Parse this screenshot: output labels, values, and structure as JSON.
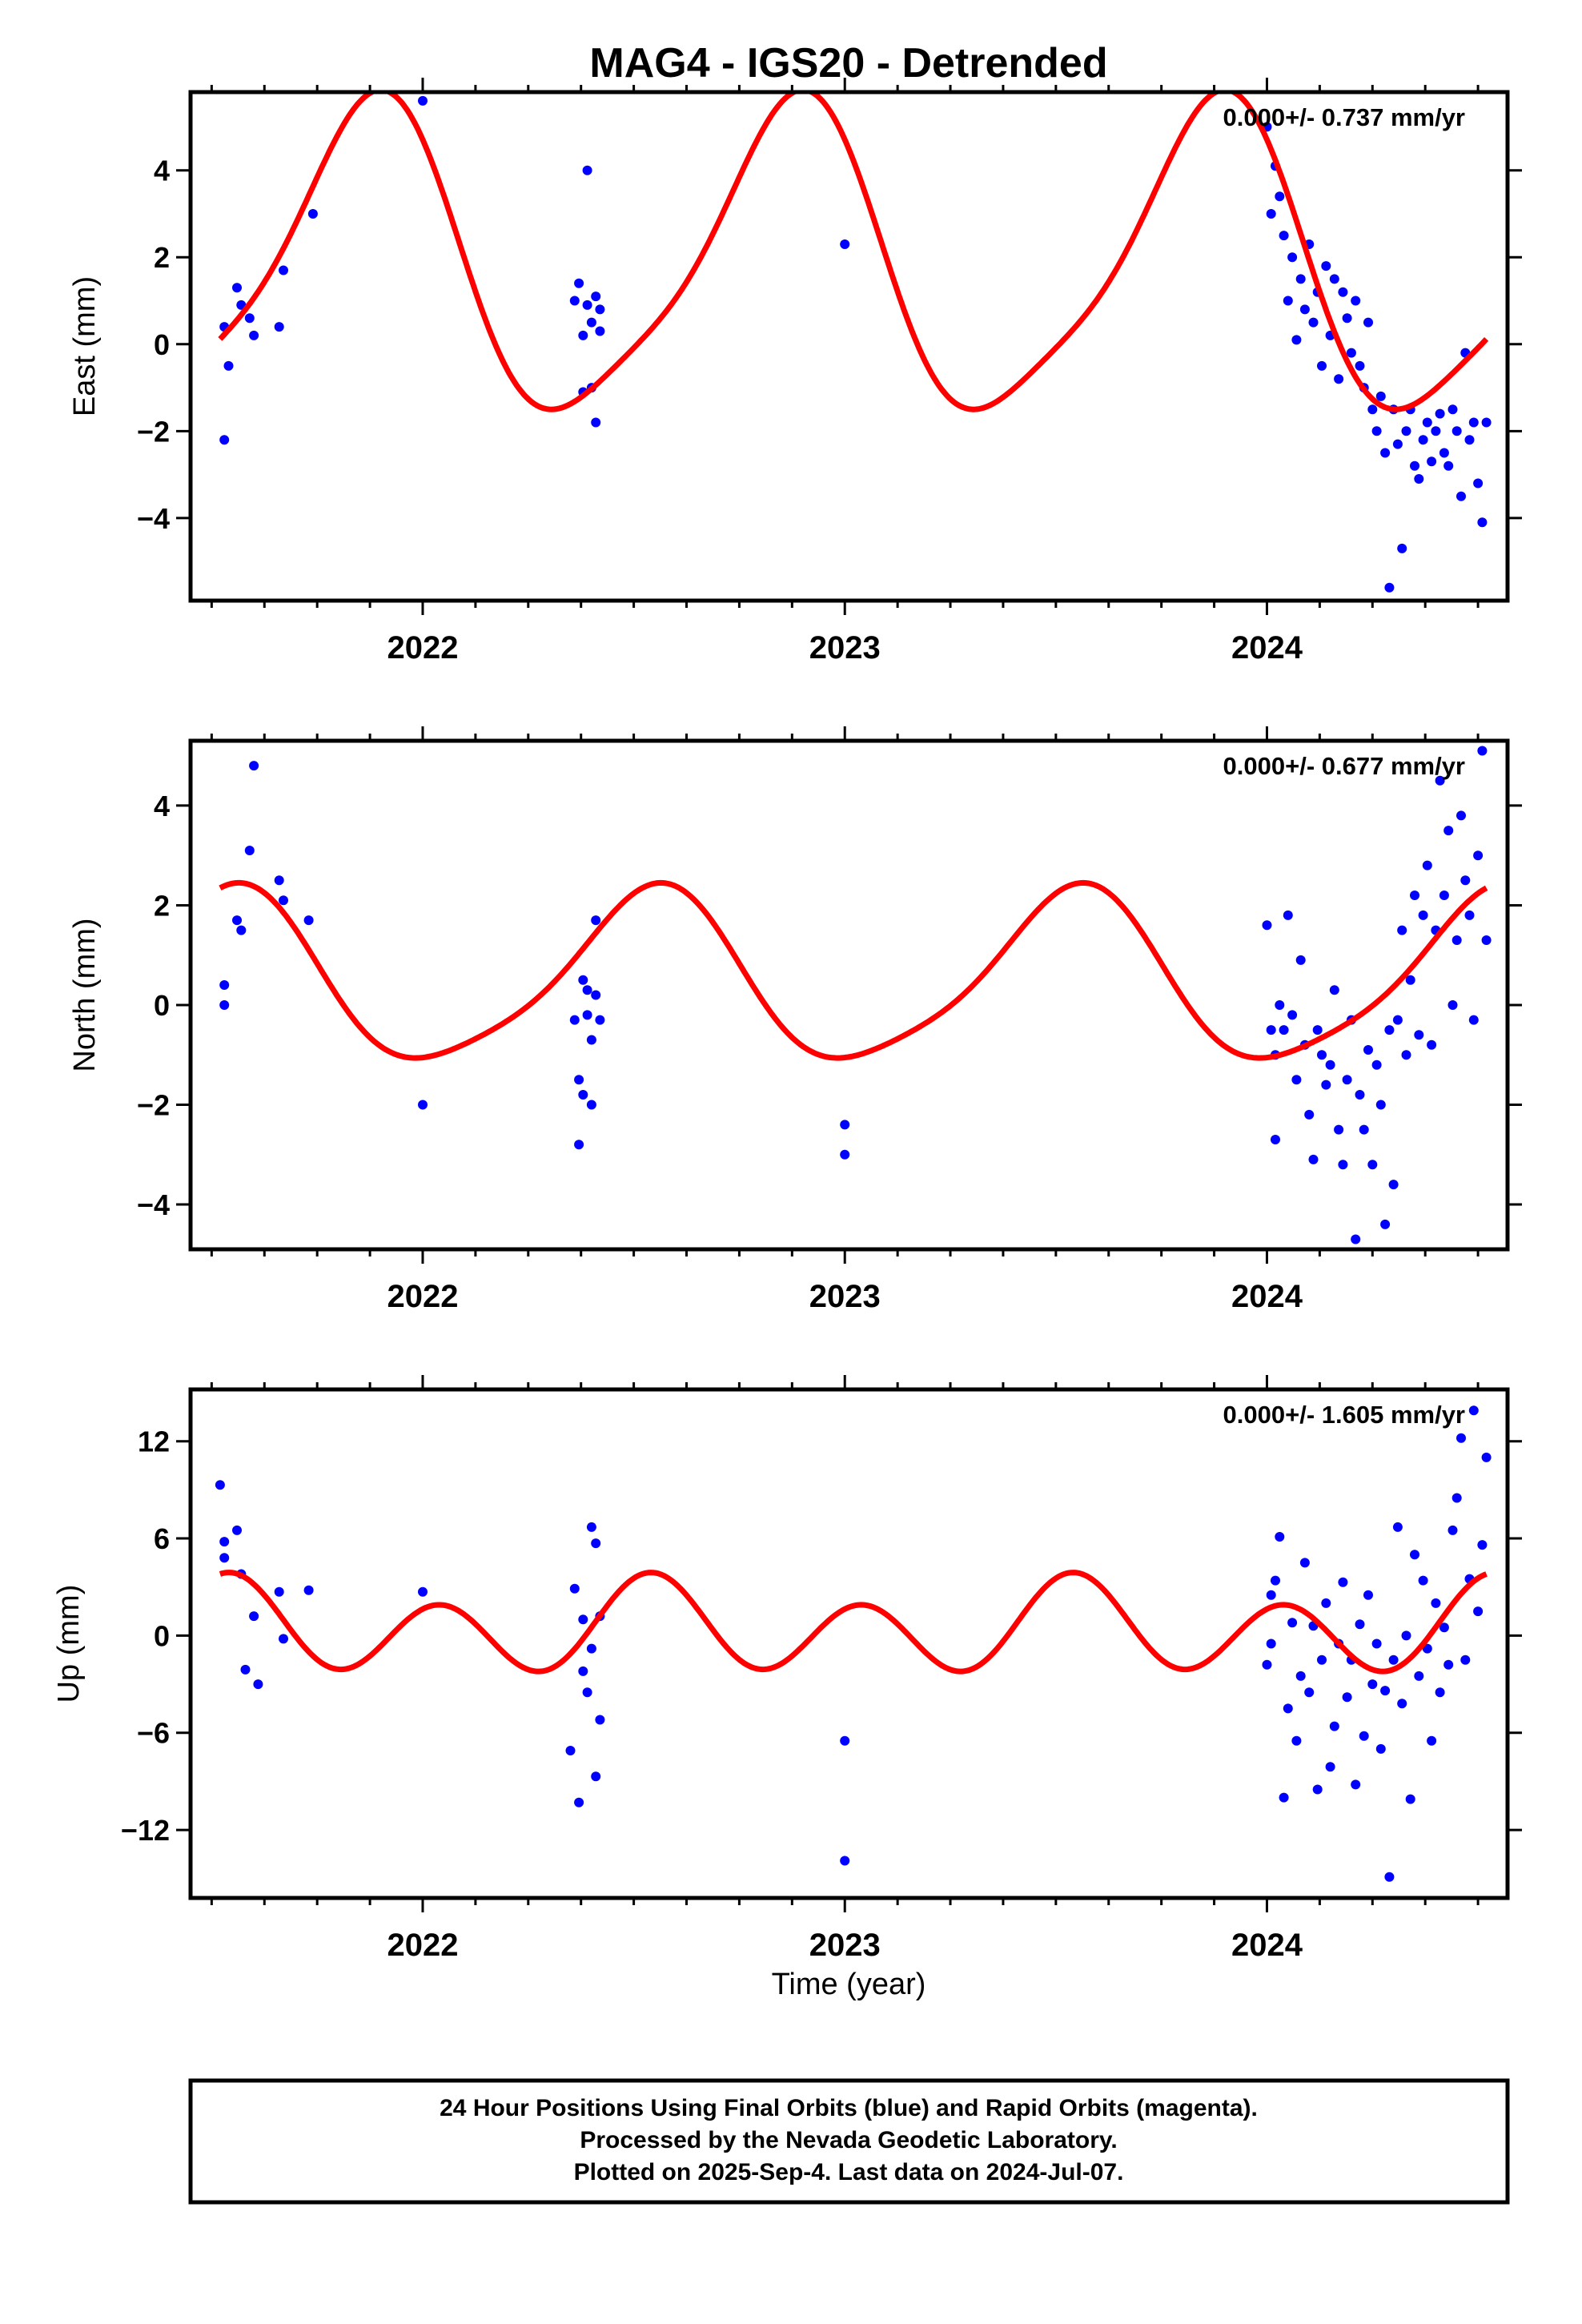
{
  "title": "MAG4 - IGS20 - Detrended",
  "xlabel": "Time (year)",
  "x_tick_labels": [
    "2022",
    "2023",
    "2024"
  ],
  "colors": {
    "final_orbits": "#0000ff",
    "model_fit": "#ff0000",
    "frame": "#000000"
  },
  "footer": {
    "lines": [
      "24 Hour Positions Using Final Orbits (blue) and Rapid Orbits (magenta).",
      "Processed by the Nevada Geodetic Laboratory.",
      "Plotted on 2025-Sep-4. Last data on 2024-Jul-07."
    ]
  },
  "chart_data": [
    {
      "type": "scatter",
      "panel": "east",
      "ylabel": "East (mm)",
      "rate_label": "0.000+/- 0.737 mm/yr",
      "xlim": [
        2021.45,
        2024.57
      ],
      "ylim": [
        -5.9,
        5.8
      ],
      "x_ticks": [
        2022,
        2023,
        2024
      ],
      "y_ticks": [
        -4,
        -2,
        0,
        2,
        4
      ],
      "model": {
        "mean": 1.8,
        "annual_amp": 3.5,
        "annual_peak": 2021.87,
        "semiannual_amp": 0.7,
        "semiannual_peak": 2021.94
      },
      "series": [
        {
          "x": [
            2021.53,
            2021.53,
            2021.54,
            2021.56,
            2021.57,
            2021.59,
            2021.6,
            2021.66,
            2021.67,
            2021.74,
            2022.0,
            2022.36,
            2022.37,
            2022.38,
            2022.38,
            2022.39,
            2022.39,
            2022.4,
            2022.4,
            2022.41,
            2022.41,
            2022.42,
            2022.42,
            2023.0,
            2024.0,
            2024.01,
            2024.02,
            2024.03,
            2024.04,
            2024.05,
            2024.06,
            2024.07,
            2024.08,
            2024.09,
            2024.1,
            2024.11,
            2024.12,
            2024.13,
            2024.14,
            2024.15,
            2024.16,
            2024.17,
            2024.18,
            2024.19,
            2024.2,
            2024.21,
            2024.22,
            2024.23,
            2024.24,
            2024.25,
            2024.26,
            2024.27,
            2024.28,
            2024.29,
            2024.3,
            2024.31,
            2024.32,
            2024.33,
            2024.34,
            2024.35,
            2024.36,
            2024.37,
            2024.38,
            2024.39,
            2024.4,
            2024.41,
            2024.42,
            2024.43,
            2024.44,
            2024.45,
            2024.46,
            2024.47,
            2024.48,
            2024.49,
            2024.5,
            2024.51,
            2024.52
          ],
          "y": [
            0.4,
            -2.2,
            -0.5,
            1.3,
            0.9,
            0.6,
            0.2,
            0.4,
            1.7,
            3.0,
            5.6,
            1.0,
            1.4,
            0.2,
            -1.1,
            4.0,
            0.9,
            -1.0,
            0.5,
            1.1,
            -1.8,
            0.3,
            0.8,
            2.3,
            5.0,
            3.0,
            4.1,
            3.4,
            2.5,
            1.0,
            2.0,
            0.1,
            1.5,
            0.8,
            2.3,
            0.5,
            1.2,
            -0.5,
            1.8,
            0.2,
            1.5,
            -0.8,
            1.2,
            0.6,
            -0.2,
            1.0,
            -0.5,
            -1.0,
            0.5,
            -1.5,
            -2.0,
            -1.2,
            -2.5,
            -5.6,
            -1.5,
            -2.3,
            -4.7,
            -2.0,
            -1.5,
            -2.8,
            -3.1,
            -2.2,
            -1.8,
            -2.7,
            -2.0,
            -1.6,
            -2.5,
            -2.8,
            -1.5,
            -2.0,
            -3.5,
            -0.2,
            -2.2,
            -1.8,
            -3.2,
            -4.1,
            -1.8
          ]
        }
      ]
    },
    {
      "type": "scatter",
      "panel": "north",
      "ylabel": "North (mm)",
      "rate_label": "0.000+/- 0.677 mm/yr",
      "xlim": [
        2021.45,
        2024.57
      ],
      "ylim": [
        -4.9,
        5.3
      ],
      "x_ticks": [
        2022,
        2023,
        2024
      ],
      "y_ticks": [
        -4,
        -2,
        0,
        2,
        4
      ],
      "model": {
        "mean": 0.5,
        "annual_amp": 1.7,
        "annual_peak": 2021.54,
        "semiannual_amp": 0.3,
        "semiannual_peak": 2021.6
      },
      "series": [
        {
          "x": [
            2021.53,
            2021.53,
            2021.56,
            2021.57,
            2021.59,
            2021.6,
            2021.66,
            2021.67,
            2021.73,
            2022.0,
            2022.36,
            2022.37,
            2022.37,
            2022.38,
            2022.38,
            2022.39,
            2022.39,
            2022.4,
            2022.4,
            2022.41,
            2022.41,
            2022.42,
            2023.0,
            2023.0,
            2024.0,
            2024.01,
            2024.02,
            2024.02,
            2024.03,
            2024.04,
            2024.05,
            2024.06,
            2024.07,
            2024.08,
            2024.09,
            2024.1,
            2024.11,
            2024.12,
            2024.13,
            2024.14,
            2024.15,
            2024.16,
            2024.17,
            2024.18,
            2024.19,
            2024.2,
            2024.21,
            2024.22,
            2024.23,
            2024.24,
            2024.25,
            2024.26,
            2024.27,
            2024.28,
            2024.29,
            2024.3,
            2024.31,
            2024.32,
            2024.33,
            2024.34,
            2024.35,
            2024.36,
            2024.37,
            2024.38,
            2024.39,
            2024.4,
            2024.41,
            2024.42,
            2024.43,
            2024.44,
            2024.45,
            2024.46,
            2024.47,
            2024.48,
            2024.49,
            2024.5,
            2024.51,
            2024.52
          ],
          "y": [
            0.0,
            0.4,
            1.7,
            1.5,
            3.1,
            4.8,
            2.5,
            2.1,
            1.7,
            -2.0,
            -0.3,
            -2.8,
            -1.5,
            0.5,
            -1.8,
            -0.2,
            0.3,
            -0.7,
            -2.0,
            0.2,
            1.7,
            -0.3,
            -2.4,
            -3.0,
            1.6,
            -0.5,
            -2.7,
            -1.0,
            0.0,
            -0.5,
            1.8,
            -0.2,
            -1.5,
            0.9,
            -0.8,
            -2.2,
            -3.1,
            -0.5,
            -1.0,
            -1.6,
            -1.2,
            0.3,
            -2.5,
            -3.2,
            -1.5,
            -0.3,
            -4.7,
            -1.8,
            -2.5,
            -0.9,
            -3.2,
            -1.2,
            -2.0,
            -4.4,
            -0.5,
            -3.6,
            -0.3,
            1.5,
            -1.0,
            0.5,
            2.2,
            -0.6,
            1.8,
            2.8,
            -0.8,
            1.5,
            4.5,
            2.2,
            3.5,
            0.0,
            1.3,
            3.8,
            2.5,
            1.8,
            -0.3,
            3.0,
            5.1,
            1.3
          ]
        }
      ]
    },
    {
      "type": "scatter",
      "panel": "up",
      "ylabel": "Up (mm)",
      "rate_label": "0.000+/- 1.605 mm/yr",
      "xlim": [
        2021.45,
        2024.57
      ],
      "ylim": [
        -16.2,
        15.2
      ],
      "x_ticks": [
        2022,
        2023,
        2024
      ],
      "y_ticks": [
        -12,
        -6,
        0,
        6,
        12
      ],
      "model": {
        "mean": 0.4,
        "annual_amp": 1.0,
        "annual_peak": 2021.55,
        "semiannual_amp": 2.5,
        "semiannual_peak": 2021.54
      },
      "series": [
        {
          "x": [
            2021.52,
            2021.53,
            2021.53,
            2021.56,
            2021.57,
            2021.58,
            2021.6,
            2021.61,
            2021.66,
            2021.67,
            2021.73,
            2022.0,
            2022.35,
            2022.36,
            2022.37,
            2022.38,
            2022.38,
            2022.39,
            2022.4,
            2022.4,
            2022.41,
            2022.41,
            2022.42,
            2022.42,
            2023.0,
            2023.0,
            2024.0,
            2024.01,
            2024.01,
            2024.02,
            2024.03,
            2024.04,
            2024.05,
            2024.06,
            2024.07,
            2024.08,
            2024.09,
            2024.1,
            2024.11,
            2024.12,
            2024.13,
            2024.14,
            2024.15,
            2024.16,
            2024.17,
            2024.18,
            2024.19,
            2024.2,
            2024.21,
            2024.22,
            2024.23,
            2024.24,
            2024.25,
            2024.26,
            2024.27,
            2024.28,
            2024.29,
            2024.3,
            2024.31,
            2024.32,
            2024.33,
            2024.34,
            2024.35,
            2024.36,
            2024.37,
            2024.38,
            2024.39,
            2024.4,
            2024.41,
            2024.42,
            2024.43,
            2024.44,
            2024.45,
            2024.46,
            2024.47,
            2024.48,
            2024.49,
            2024.5,
            2024.51,
            2024.52
          ],
          "y": [
            9.3,
            5.8,
            4.8,
            6.5,
            3.8,
            -2.1,
            1.2,
            -3.0,
            2.7,
            -0.2,
            2.8,
            2.7,
            -7.1,
            2.9,
            -10.3,
            -2.2,
            1.0,
            -3.5,
            6.7,
            -0.8,
            5.7,
            -8.7,
            1.2,
            -5.2,
            -6.5,
            -13.9,
            -1.8,
            2.5,
            -0.5,
            3.4,
            6.1,
            -10.0,
            -4.5,
            0.8,
            -6.5,
            -2.5,
            4.5,
            -3.5,
            0.6,
            -9.5,
            -1.5,
            2.0,
            -8.1,
            -5.6,
            -0.5,
            3.3,
            -3.8,
            -1.5,
            -9.2,
            0.7,
            -6.2,
            2.5,
            -3.0,
            -0.5,
            -7.0,
            -3.4,
            -14.9,
            -1.5,
            6.7,
            -4.2,
            0.0,
            -10.1,
            5.0,
            -2.5,
            3.4,
            -0.8,
            -6.5,
            2.0,
            -3.5,
            0.5,
            -1.8,
            6.5,
            8.5,
            12.2,
            -1.5,
            3.5,
            13.9,
            1.5,
            5.6,
            11.0
          ]
        }
      ]
    }
  ]
}
